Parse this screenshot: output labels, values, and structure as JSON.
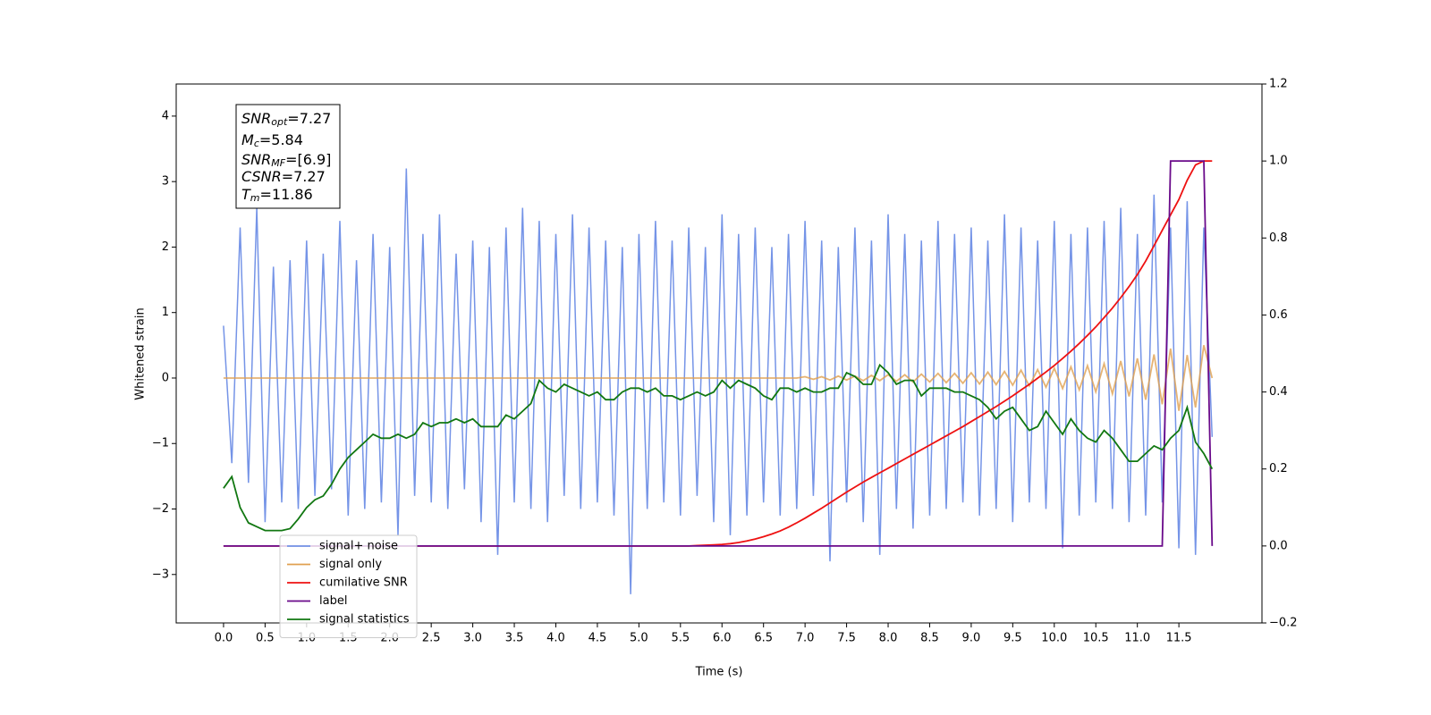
{
  "chart_data": {
    "type": "line",
    "xlabel": "Time (s)",
    "ylabel": "Whitened strain",
    "xlim": [
      -0.57,
      12.5
    ],
    "ylim": [
      -3.74,
      4.49
    ],
    "y2lim": [
      -0.2,
      1.2
    ],
    "xticks": [
      {
        "value": 0,
        "label": "0.0"
      },
      0.5,
      {
        "value": 1,
        "label": "1.0"
      },
      1.5,
      {
        "value": 2,
        "label": "2.0"
      },
      2.5,
      {
        "value": 3,
        "label": "3.0"
      },
      3.5,
      {
        "value": 4,
        "label": "4.0"
      },
      4.5,
      {
        "value": 5,
        "label": "5.0"
      },
      5.5,
      {
        "value": 6,
        "label": "6.0"
      },
      6.5,
      {
        "value": 7,
        "label": "7.0"
      },
      7.5,
      {
        "value": 8,
        "label": "8.0"
      },
      8.5,
      {
        "value": 9,
        "label": "9.0"
      },
      9.5,
      {
        "value": 10,
        "label": "10.0"
      },
      10.5,
      {
        "value": 11,
        "label": "11.0"
      },
      11.5
    ],
    "yticks": [
      {
        "value": -3,
        "label": "−3"
      },
      {
        "value": -2,
        "label": "−2"
      },
      {
        "value": -1,
        "label": "−1"
      },
      0,
      1,
      2,
      3,
      4
    ],
    "y2ticks": [
      {
        "value": -0.2,
        "label": "−0.2"
      },
      {
        "value": 0,
        "label": "0.0"
      },
      0.2,
      0.4,
      0.6,
      0.8,
      {
        "value": 1,
        "label": "1.0"
      },
      1.2
    ],
    "annotations": [
      {
        "name": "SNR",
        "sub": "opt",
        "value": "=7.27"
      },
      {
        "name": "M",
        "sub": "c",
        "value": "=5.84"
      },
      {
        "name": "SNR",
        "sub": "MF",
        "value": "=[6.9]"
      },
      {
        "name": "CSNR",
        "sub": "",
        "value": "=7.27"
      },
      {
        "name": "T",
        "sub": "m",
        "value": "=11.86"
      }
    ],
    "legend": "lower left",
    "x": [
      0,
      0.1,
      0.2,
      0.3,
      0.4,
      0.5,
      0.6,
      0.7,
      0.8,
      0.9,
      1,
      1.1,
      1.2,
      1.3,
      1.4,
      1.5,
      1.6,
      1.7,
      1.8,
      1.9,
      2,
      2.1,
      2.2,
      2.3,
      2.4,
      2.5,
      2.6,
      2.7,
      2.8,
      2.9,
      3,
      3.1,
      3.2,
      3.3,
      3.4,
      3.5,
      3.6,
      3.7,
      3.8,
      3.9,
      4,
      4.1,
      4.2,
      4.3,
      4.4,
      4.5,
      4.6,
      4.7,
      4.8,
      4.9,
      5,
      5.1,
      5.2,
      5.3,
      5.4,
      5.5,
      5.6,
      5.7,
      5.8,
      5.9,
      6,
      6.1,
      6.2,
      6.3,
      6.4,
      6.5,
      6.6,
      6.7,
      6.8,
      6.9,
      7,
      7.1,
      7.2,
      7.3,
      7.4,
      7.5,
      7.6,
      7.7,
      7.8,
      7.9,
      8,
      8.1,
      8.2,
      8.3,
      8.4,
      8.5,
      8.6,
      8.7,
      8.8,
      8.9,
      9,
      9.1,
      9.2,
      9.3,
      9.4,
      9.5,
      9.6,
      9.7,
      9.8,
      9.9,
      10,
      10.1,
      10.2,
      10.3,
      10.4,
      10.5,
      10.6,
      10.7,
      10.8,
      10.9,
      11,
      11.1,
      11.2,
      11.3,
      11.4,
      11.5,
      11.6,
      11.7,
      11.8,
      11.9
    ],
    "series": [
      {
        "name": "signal+ noise",
        "color": "#7594e7",
        "axis": "y",
        "values": [
          0.8,
          -1.3,
          2.3,
          -1.6,
          2.6,
          -2.2,
          1.7,
          -1.9,
          1.8,
          -2.0,
          2.1,
          -1.8,
          1.9,
          -1.7,
          2.4,
          -2.1,
          1.8,
          -2.0,
          2.2,
          -1.9,
          2.0,
          -2.4,
          3.2,
          -1.8,
          2.2,
          -1.9,
          2.5,
          -2.0,
          1.9,
          -1.7,
          2.1,
          -2.2,
          2.0,
          -2.7,
          2.3,
          -1.9,
          2.6,
          -2.0,
          2.4,
          -2.2,
          2.2,
          -1.8,
          2.5,
          -2.0,
          2.3,
          -1.9,
          2.1,
          -2.1,
          2.0,
          -3.3,
          2.2,
          -2.0,
          2.4,
          -1.9,
          2.1,
          -2.1,
          2.3,
          -1.8,
          2.0,
          -2.2,
          2.5,
          -2.4,
          2.2,
          -2.1,
          2.3,
          -1.9,
          2.0,
          -2.1,
          2.2,
          -2.0,
          2.4,
          -1.8,
          2.1,
          -2.8,
          2.0,
          -1.9,
          2.3,
          -2.2,
          2.1,
          -2.7,
          2.5,
          -2.0,
          2.2,
          -2.3,
          2.1,
          -2.1,
          2.4,
          -2.0,
          2.2,
          -1.9,
          2.3,
          -2.1,
          2.1,
          -2.0,
          2.5,
          -2.2,
          2.3,
          -1.9,
          2.1,
          -2.0,
          2.4,
          -2.6,
          2.2,
          -2.1,
          2.3,
          -1.9,
          2.4,
          -2.0,
          2.6,
          -2.2,
          2.2,
          -2.1,
          2.8,
          -1.9,
          2.3,
          -2.6,
          2.7,
          -2.7,
          2.3,
          -0.9
        ]
      },
      {
        "name": "signal only",
        "color": "#e0a050",
        "axis": "y",
        "values": [
          0,
          0,
          0,
          0,
          0,
          0,
          0,
          0,
          0,
          0,
          0,
          0,
          0,
          0,
          0,
          0,
          0,
          0,
          0,
          0,
          0,
          0,
          0,
          0,
          0,
          0,
          0,
          0,
          0,
          0,
          0,
          0,
          0,
          0,
          0,
          0,
          0,
          0,
          0,
          0,
          0,
          0,
          0,
          0,
          0,
          0,
          0,
          0,
          0,
          0,
          0,
          0,
          0,
          0,
          0,
          0,
          0,
          0,
          0,
          0,
          0,
          0,
          0,
          0,
          0,
          0,
          0,
          0,
          0,
          0,
          0.02,
          -0.02,
          0.02,
          -0.03,
          0.03,
          -0.03,
          0.03,
          -0.04,
          0.04,
          -0.04,
          0.05,
          -0.05,
          0.05,
          -0.06,
          0.06,
          -0.06,
          0.07,
          -0.07,
          0.07,
          -0.08,
          0.08,
          -0.09,
          0.09,
          -0.1,
          0.1,
          -0.11,
          0.12,
          -0.12,
          0.13,
          -0.14,
          0.15,
          -0.16,
          0.17,
          -0.18,
          0.19,
          -0.21,
          0.22,
          -0.24,
          0.26,
          -0.28,
          0.3,
          -0.33,
          0.36,
          -0.4,
          0.45,
          -0.5,
          0.35,
          -0.45,
          0.5,
          0
        ]
      },
      {
        "name": "cumilative SNR",
        "color": "#ee1111",
        "axis": "y2",
        "values": [
          0,
          0,
          0,
          0,
          0,
          0,
          0,
          0,
          0,
          0,
          0,
          0,
          0,
          0,
          0,
          0,
          0,
          0,
          0,
          0,
          0,
          0,
          0,
          0,
          0,
          0,
          0,
          0,
          0,
          0,
          0,
          0,
          0,
          0,
          0,
          0,
          0,
          0,
          0,
          0,
          0,
          0,
          0,
          0,
          0,
          0,
          0,
          0,
          0,
          0,
          0,
          0,
          0,
          0,
          0,
          0,
          0,
          0.001,
          0.002,
          0.003,
          0.004,
          0.006,
          0.009,
          0.013,
          0.018,
          0.024,
          0.031,
          0.039,
          0.049,
          0.06,
          0.072,
          0.085,
          0.098,
          0.112,
          0.126,
          0.14,
          0.153,
          0.166,
          0.178,
          0.19,
          0.202,
          0.214,
          0.226,
          0.238,
          0.25,
          0.262,
          0.274,
          0.286,
          0.298,
          0.31,
          0.323,
          0.336,
          0.349,
          0.362,
          0.376,
          0.39,
          0.405,
          0.42,
          0.436,
          0.452,
          0.469,
          0.487,
          0.506,
          0.526,
          0.547,
          0.569,
          0.593,
          0.618,
          0.645,
          0.674,
          0.705,
          0.74,
          0.78,
          0.82,
          0.86,
          0.9,
          0.95,
          0.99,
          1.0,
          1.0
        ]
      },
      {
        "name": "label",
        "color": "#6a0a8a",
        "axis": "y2",
        "values": [
          0,
          0,
          0,
          0,
          0,
          0,
          0,
          0,
          0,
          0,
          0,
          0,
          0,
          0,
          0,
          0,
          0,
          0,
          0,
          0,
          0,
          0,
          0,
          0,
          0,
          0,
          0,
          0,
          0,
          0,
          0,
          0,
          0,
          0,
          0,
          0,
          0,
          0,
          0,
          0,
          0,
          0,
          0,
          0,
          0,
          0,
          0,
          0,
          0,
          0,
          0,
          0,
          0,
          0,
          0,
          0,
          0,
          0,
          0,
          0,
          0,
          0,
          0,
          0,
          0,
          0,
          0,
          0,
          0,
          0,
          0,
          0,
          0,
          0,
          0,
          0,
          0,
          0,
          0,
          0,
          0,
          0,
          0,
          0,
          0,
          0,
          0,
          0,
          0,
          0,
          0,
          0,
          0,
          0,
          0,
          0,
          0,
          0,
          0,
          0,
          0,
          0,
          0,
          0,
          0,
          0,
          0,
          0,
          0,
          0,
          0,
          0,
          0,
          0,
          1,
          1,
          1,
          1,
          1,
          0
        ]
      },
      {
        "name": "signal statistics",
        "color": "#117711",
        "axis": "y2",
        "values": [
          0.15,
          0.18,
          0.1,
          0.06,
          0.05,
          0.04,
          0.04,
          0.04,
          0.045,
          0.07,
          0.1,
          0.12,
          0.13,
          0.16,
          0.2,
          0.23,
          0.25,
          0.27,
          0.29,
          0.28,
          0.28,
          0.29,
          0.28,
          0.29,
          0.32,
          0.31,
          0.32,
          0.32,
          0.33,
          0.32,
          0.33,
          0.31,
          0.31,
          0.31,
          0.34,
          0.33,
          0.35,
          0.37,
          0.43,
          0.41,
          0.4,
          0.42,
          0.41,
          0.4,
          0.39,
          0.4,
          0.38,
          0.38,
          0.4,
          0.41,
          0.41,
          0.4,
          0.41,
          0.39,
          0.39,
          0.38,
          0.39,
          0.4,
          0.39,
          0.4,
          0.43,
          0.41,
          0.43,
          0.42,
          0.41,
          0.39,
          0.38,
          0.41,
          0.41,
          0.4,
          0.41,
          0.4,
          0.4,
          0.41,
          0.41,
          0.45,
          0.44,
          0.42,
          0.42,
          0.47,
          0.45,
          0.42,
          0.43,
          0.43,
          0.39,
          0.41,
          0.41,
          0.41,
          0.4,
          0.4,
          0.39,
          0.38,
          0.36,
          0.33,
          0.35,
          0.36,
          0.33,
          0.3,
          0.31,
          0.35,
          0.32,
          0.29,
          0.33,
          0.3,
          0.28,
          0.27,
          0.3,
          0.28,
          0.25,
          0.22,
          0.22,
          0.24,
          0.26,
          0.25,
          0.28,
          0.3,
          0.36,
          0.27,
          0.24,
          0.2
        ]
      }
    ]
  }
}
